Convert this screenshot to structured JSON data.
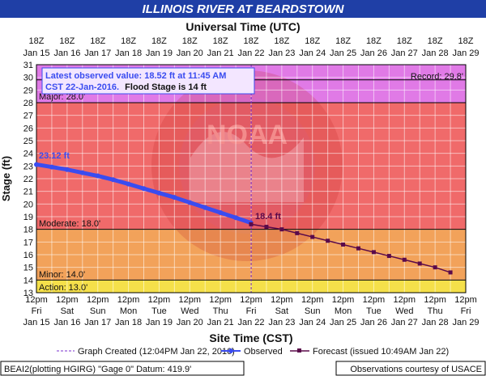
{
  "header": {
    "title": "ILLINOIS RIVER AT BEARDSTOWN",
    "utc_title": "Universal Time (UTC)"
  },
  "colors": {
    "title_bg": "#1f3fa6",
    "record_band": "#e07ae6",
    "major_band": "#f06a6a",
    "moderate_band": "#f2a25a",
    "minor_band": "#f5e04a",
    "observed_line": "#3a4cf0",
    "forecast_line": "#5a0a4a"
  },
  "annotation": {
    "line1": "Latest observed value: 18.52 ft at 11:45 AM",
    "line2": "CST 22-Jan-2016.",
    "line2_bold": "Flood Stage is 14 ft"
  },
  "labels": {
    "record": "Record: 29.8'",
    "major": "Major: 28.0'",
    "moderate": "Moderate: 18.0'",
    "minor": "Minor: 14.0'",
    "action": "Action: 13.0'",
    "start_value": "23.12 ft",
    "forecast_start": "18.4 ft"
  },
  "footer": {
    "left": "BEAI2(plotting HGIRG) \"Gage 0\" Datum: 419.9'",
    "right": "Observations courtesy of USACE"
  },
  "legend": {
    "created": "Graph Created (12:04PM Jan 22, 2016)",
    "observed": "Observed",
    "forecast": "Forecast (issued 10:49AM Jan 22)"
  },
  "chart_data": {
    "type": "line",
    "title": "ILLINOIS RIVER AT BEARDSTOWN",
    "xlabel": "Site Time (CST)",
    "ylabel": "Stage (ft)",
    "x_top_label": "Universal Time (UTC)",
    "ylim": [
      13,
      31
    ],
    "xlim": [
      "Jan 15 12pm",
      "Jan 29 12pm"
    ],
    "grid": true,
    "y_ticks": [
      13,
      14,
      15,
      16,
      17,
      18,
      19,
      20,
      21,
      22,
      23,
      24,
      25,
      26,
      27,
      28,
      29,
      30,
      31
    ],
    "x_bottom_ticks": [
      {
        "time": "12pm",
        "day": "Fri",
        "date": "Jan 15"
      },
      {
        "time": "12pm",
        "day": "Sat",
        "date": "Jan 16"
      },
      {
        "time": "12pm",
        "day": "Sun",
        "date": "Jan 17"
      },
      {
        "time": "12pm",
        "day": "Mon",
        "date": "Jan 18"
      },
      {
        "time": "12pm",
        "day": "Tue",
        "date": "Jan 19"
      },
      {
        "time": "12pm",
        "day": "Wed",
        "date": "Jan 20"
      },
      {
        "time": "12pm",
        "day": "Thu",
        "date": "Jan 21"
      },
      {
        "time": "12pm",
        "day": "Fri",
        "date": "Jan 22"
      },
      {
        "time": "12pm",
        "day": "Sat",
        "date": "Jan 23"
      },
      {
        "time": "12pm",
        "day": "Sun",
        "date": "Jan 24"
      },
      {
        "time": "12pm",
        "day": "Mon",
        "date": "Jan 25"
      },
      {
        "time": "12pm",
        "day": "Tue",
        "date": "Jan 26"
      },
      {
        "time": "12pm",
        "day": "Wed",
        "date": "Jan 27"
      },
      {
        "time": "12pm",
        "day": "Thu",
        "date": "Jan 28"
      },
      {
        "time": "12pm",
        "day": "Fri",
        "date": "Jan 29"
      }
    ],
    "x_top_ticks": [
      {
        "time": "18Z",
        "date": "Jan 15"
      },
      {
        "time": "18Z",
        "date": "Jan 16"
      },
      {
        "time": "18Z",
        "date": "Jan 17"
      },
      {
        "time": "18Z",
        "date": "Jan 18"
      },
      {
        "time": "18Z",
        "date": "Jan 19"
      },
      {
        "time": "18Z",
        "date": "Jan 20"
      },
      {
        "time": "18Z",
        "date": "Jan 21"
      },
      {
        "time": "18Z",
        "date": "Jan 22"
      },
      {
        "time": "18Z",
        "date": "Jan 23"
      },
      {
        "time": "18Z",
        "date": "Jan 24"
      },
      {
        "time": "18Z",
        "date": "Jan 25"
      },
      {
        "time": "18Z",
        "date": "Jan 26"
      },
      {
        "time": "18Z",
        "date": "Jan 27"
      },
      {
        "time": "18Z",
        "date": "Jan 28"
      },
      {
        "time": "18Z",
        "date": "Jan 29"
      }
    ],
    "flood_categories": [
      {
        "name": "Record",
        "stage": 29.8
      },
      {
        "name": "Major",
        "stage": 28.0
      },
      {
        "name": "Moderate",
        "stage": 18.0
      },
      {
        "name": "Minor",
        "stage": 14.0
      },
      {
        "name": "Action",
        "stage": 13.0
      }
    ],
    "graph_created": "Jan 22 12:04PM",
    "series": [
      {
        "name": "Observed",
        "x": [
          "Jan 15 12pm",
          "Jan 16 12am",
          "Jan 16 12pm",
          "Jan 17 12am",
          "Jan 17 12pm",
          "Jan 18 12am",
          "Jan 18 12pm",
          "Jan 19 12am",
          "Jan 19 12pm",
          "Jan 20 12am",
          "Jan 20 12pm",
          "Jan 21 12am",
          "Jan 21 12pm",
          "Jan 22 12am",
          "Jan 22 11:45am"
        ],
        "y": [
          23.12,
          22.92,
          22.72,
          22.47,
          22.22,
          21.92,
          21.58,
          21.22,
          20.87,
          20.52,
          20.12,
          19.72,
          19.32,
          18.92,
          18.52
        ]
      },
      {
        "name": "Forecast",
        "x": [
          "Jan 22 12pm",
          "Jan 23 12am",
          "Jan 23 12pm",
          "Jan 24 12am",
          "Jan 24 12pm",
          "Jan 25 12am",
          "Jan 25 12pm",
          "Jan 26 12am",
          "Jan 26 12pm",
          "Jan 27 12am",
          "Jan 27 12pm",
          "Jan 28 12am",
          "Jan 28 12pm",
          "Jan 29 12am"
        ],
        "y": [
          18.4,
          18.2,
          18.0,
          17.7,
          17.4,
          17.1,
          16.8,
          16.5,
          16.2,
          15.9,
          15.6,
          15.3,
          15.0,
          14.6
        ]
      }
    ]
  }
}
